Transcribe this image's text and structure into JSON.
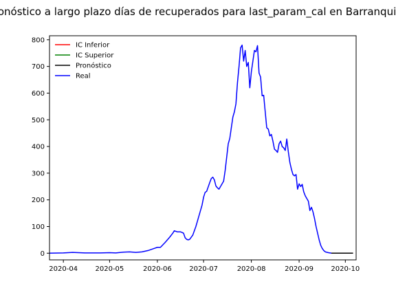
{
  "chart_data": {
    "type": "line",
    "title": "Pronóstico a largo plazo días de recuperados para last_param_cal en Barranquilla",
    "xlabel": "",
    "ylabel": "",
    "x_range": [
      "2020-03-23",
      "2020-10-08"
    ],
    "ylim": [
      -25,
      815
    ],
    "y_ticks": [
      0,
      100,
      200,
      300,
      400,
      500,
      600,
      700,
      800
    ],
    "x_ticks": [
      {
        "date": "2020-04-01",
        "label": "2020-04"
      },
      {
        "date": "2020-05-01",
        "label": "2020-05"
      },
      {
        "date": "2020-06-01",
        "label": "2020-06"
      },
      {
        "date": "2020-07-01",
        "label": "2020-07"
      },
      {
        "date": "2020-08-01",
        "label": "2020-08"
      },
      {
        "date": "2020-09-01",
        "label": "2020-09"
      },
      {
        "date": "2020-10-01",
        "label": "2020-10"
      }
    ],
    "grid": false,
    "legend_position": "top-left",
    "series": [
      {
        "name": "IC Inferior",
        "color": "#ff0000",
        "points": [
          [
            "2020-09-22",
            0
          ],
          [
            "2020-10-06",
            0
          ]
        ]
      },
      {
        "name": "IC Superior",
        "color": "#008000",
        "points": [
          [
            "2020-09-22",
            0
          ],
          [
            "2020-10-06",
            0
          ]
        ]
      },
      {
        "name": "Pronóstico",
        "color": "#000000",
        "points": [
          [
            "2020-09-22",
            0
          ],
          [
            "2020-10-06",
            0
          ]
        ]
      },
      {
        "name": "Real",
        "color": "#0000ff",
        "points": [
          [
            "2020-03-23",
            0
          ],
          [
            "2020-04-01",
            1
          ],
          [
            "2020-04-07",
            3
          ],
          [
            "2020-04-15",
            1
          ],
          [
            "2020-04-25",
            1
          ],
          [
            "2020-05-01",
            2
          ],
          [
            "2020-05-05",
            1
          ],
          [
            "2020-05-10",
            4
          ],
          [
            "2020-05-14",
            5
          ],
          [
            "2020-05-18",
            3
          ],
          [
            "2020-05-22",
            5
          ],
          [
            "2020-05-26",
            10
          ],
          [
            "2020-05-30",
            18
          ],
          [
            "2020-06-01",
            22
          ],
          [
            "2020-06-03",
            22
          ],
          [
            "2020-06-06",
            40
          ],
          [
            "2020-06-09",
            60
          ],
          [
            "2020-06-11",
            75
          ],
          [
            "2020-06-12",
            84
          ],
          [
            "2020-06-14",
            80
          ],
          [
            "2020-06-16",
            80
          ],
          [
            "2020-06-17",
            78
          ],
          [
            "2020-06-18",
            75
          ],
          [
            "2020-06-19",
            58
          ],
          [
            "2020-06-20",
            52
          ],
          [
            "2020-06-21",
            50
          ],
          [
            "2020-06-22",
            52
          ],
          [
            "2020-06-24",
            68
          ],
          [
            "2020-06-26",
            100
          ],
          [
            "2020-06-28",
            140
          ],
          [
            "2020-06-30",
            180
          ],
          [
            "2020-07-01",
            210
          ],
          [
            "2020-07-02",
            228
          ],
          [
            "2020-07-03",
            232
          ],
          [
            "2020-07-05",
            265
          ],
          [
            "2020-07-06",
            280
          ],
          [
            "2020-07-07",
            285
          ],
          [
            "2020-07-08",
            275
          ],
          [
            "2020-07-09",
            252
          ],
          [
            "2020-07-10",
            245
          ],
          [
            "2020-07-11",
            240
          ],
          [
            "2020-07-12",
            250
          ],
          [
            "2020-07-14",
            270
          ],
          [
            "2020-07-15",
            310
          ],
          [
            "2020-07-16",
            360
          ],
          [
            "2020-07-17",
            410
          ],
          [
            "2020-07-18",
            430
          ],
          [
            "2020-07-19",
            470
          ],
          [
            "2020-07-20",
            510
          ],
          [
            "2020-07-21",
            530
          ],
          [
            "2020-07-22",
            560
          ],
          [
            "2020-07-23",
            640
          ],
          [
            "2020-07-24",
            700
          ],
          [
            "2020-07-25",
            770
          ],
          [
            "2020-07-26",
            780
          ],
          [
            "2020-07-27",
            720
          ],
          [
            "2020-07-28",
            760
          ],
          [
            "2020-07-29",
            700
          ],
          [
            "2020-07-30",
            715
          ],
          [
            "2020-07-31",
            620
          ],
          [
            "2020-08-01",
            680
          ],
          [
            "2020-08-02",
            720
          ],
          [
            "2020-08-03",
            760
          ],
          [
            "2020-08-04",
            755
          ],
          [
            "2020-08-05",
            778
          ],
          [
            "2020-08-06",
            675
          ],
          [
            "2020-08-07",
            660
          ],
          [
            "2020-08-08",
            590
          ],
          [
            "2020-08-09",
            592
          ],
          [
            "2020-08-10",
            530
          ],
          [
            "2020-08-11",
            470
          ],
          [
            "2020-08-12",
            465
          ],
          [
            "2020-08-13",
            440
          ],
          [
            "2020-08-14",
            445
          ],
          [
            "2020-08-15",
            420
          ],
          [
            "2020-08-16",
            390
          ],
          [
            "2020-08-17",
            385
          ],
          [
            "2020-08-18",
            378
          ],
          [
            "2020-08-19",
            410
          ],
          [
            "2020-08-20",
            420
          ],
          [
            "2020-08-21",
            400
          ],
          [
            "2020-08-22",
            395
          ],
          [
            "2020-08-23",
            385
          ],
          [
            "2020-08-24",
            428
          ],
          [
            "2020-08-25",
            380
          ],
          [
            "2020-08-26",
            340
          ],
          [
            "2020-08-27",
            315
          ],
          [
            "2020-08-28",
            295
          ],
          [
            "2020-08-29",
            290
          ],
          [
            "2020-08-30",
            295
          ],
          [
            "2020-08-31",
            240
          ],
          [
            "2020-09-01",
            260
          ],
          [
            "2020-09-02",
            250
          ],
          [
            "2020-09-03",
            258
          ],
          [
            "2020-09-04",
            230
          ],
          [
            "2020-09-05",
            215
          ],
          [
            "2020-09-06",
            205
          ],
          [
            "2020-09-07",
            195
          ],
          [
            "2020-09-08",
            160
          ],
          [
            "2020-09-09",
            172
          ],
          [
            "2020-09-10",
            155
          ],
          [
            "2020-09-11",
            130
          ],
          [
            "2020-09-12",
            100
          ],
          [
            "2020-09-13",
            75
          ],
          [
            "2020-09-14",
            50
          ],
          [
            "2020-09-15",
            30
          ],
          [
            "2020-09-16",
            18
          ],
          [
            "2020-09-17",
            10
          ],
          [
            "2020-09-18",
            5
          ],
          [
            "2020-09-20",
            2
          ],
          [
            "2020-09-22",
            0
          ]
        ]
      }
    ]
  }
}
